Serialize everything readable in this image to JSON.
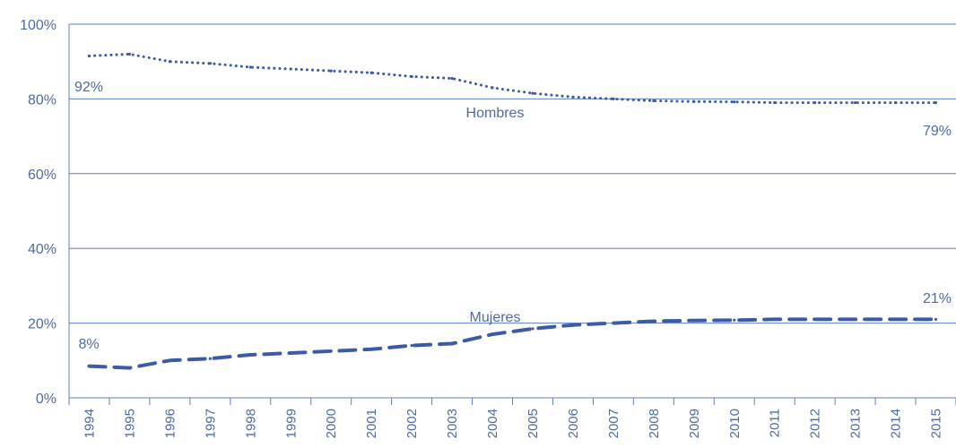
{
  "chart_data": {
    "type": "line",
    "title": "",
    "xlabel": "",
    "ylabel": "",
    "ylim": [
      0,
      100
    ],
    "yticks": [
      "0%",
      "20%",
      "40%",
      "60%",
      "80%",
      "100%"
    ],
    "x": [
      "1994",
      "1995",
      "1996",
      "1997",
      "1998",
      "1999",
      "2000",
      "2001",
      "2002",
      "2003",
      "2004",
      "2005",
      "2006",
      "2007",
      "2008",
      "2009",
      "2010",
      "2011",
      "2012",
      "2013",
      "2014",
      "2015"
    ],
    "grid": true,
    "colors": {
      "text": "#4f6aa3",
      "grid": "#5b7fc2",
      "series": "#3b5ba6"
    },
    "series": [
      {
        "name": "Hombres",
        "style": "dotted",
        "values": [
          91.5,
          92,
          90,
          89.5,
          88.5,
          88,
          87.5,
          87,
          86,
          85.5,
          83,
          81.5,
          80.5,
          80,
          79.5,
          79.3,
          79.2,
          79,
          79,
          79,
          79,
          79
        ]
      },
      {
        "name": "Mujeres",
        "style": "dashed",
        "values": [
          8.5,
          8,
          10,
          10.5,
          11.5,
          12,
          12.5,
          13,
          14,
          14.5,
          17,
          18.5,
          19.5,
          20,
          20.5,
          20.7,
          20.8,
          21,
          21,
          21,
          21,
          21
        ]
      }
    ],
    "annotations": {
      "hombres_start": "92%",
      "hombres_end": "79%",
      "mujeres_start": "8%",
      "mujeres_end": "21%"
    }
  }
}
